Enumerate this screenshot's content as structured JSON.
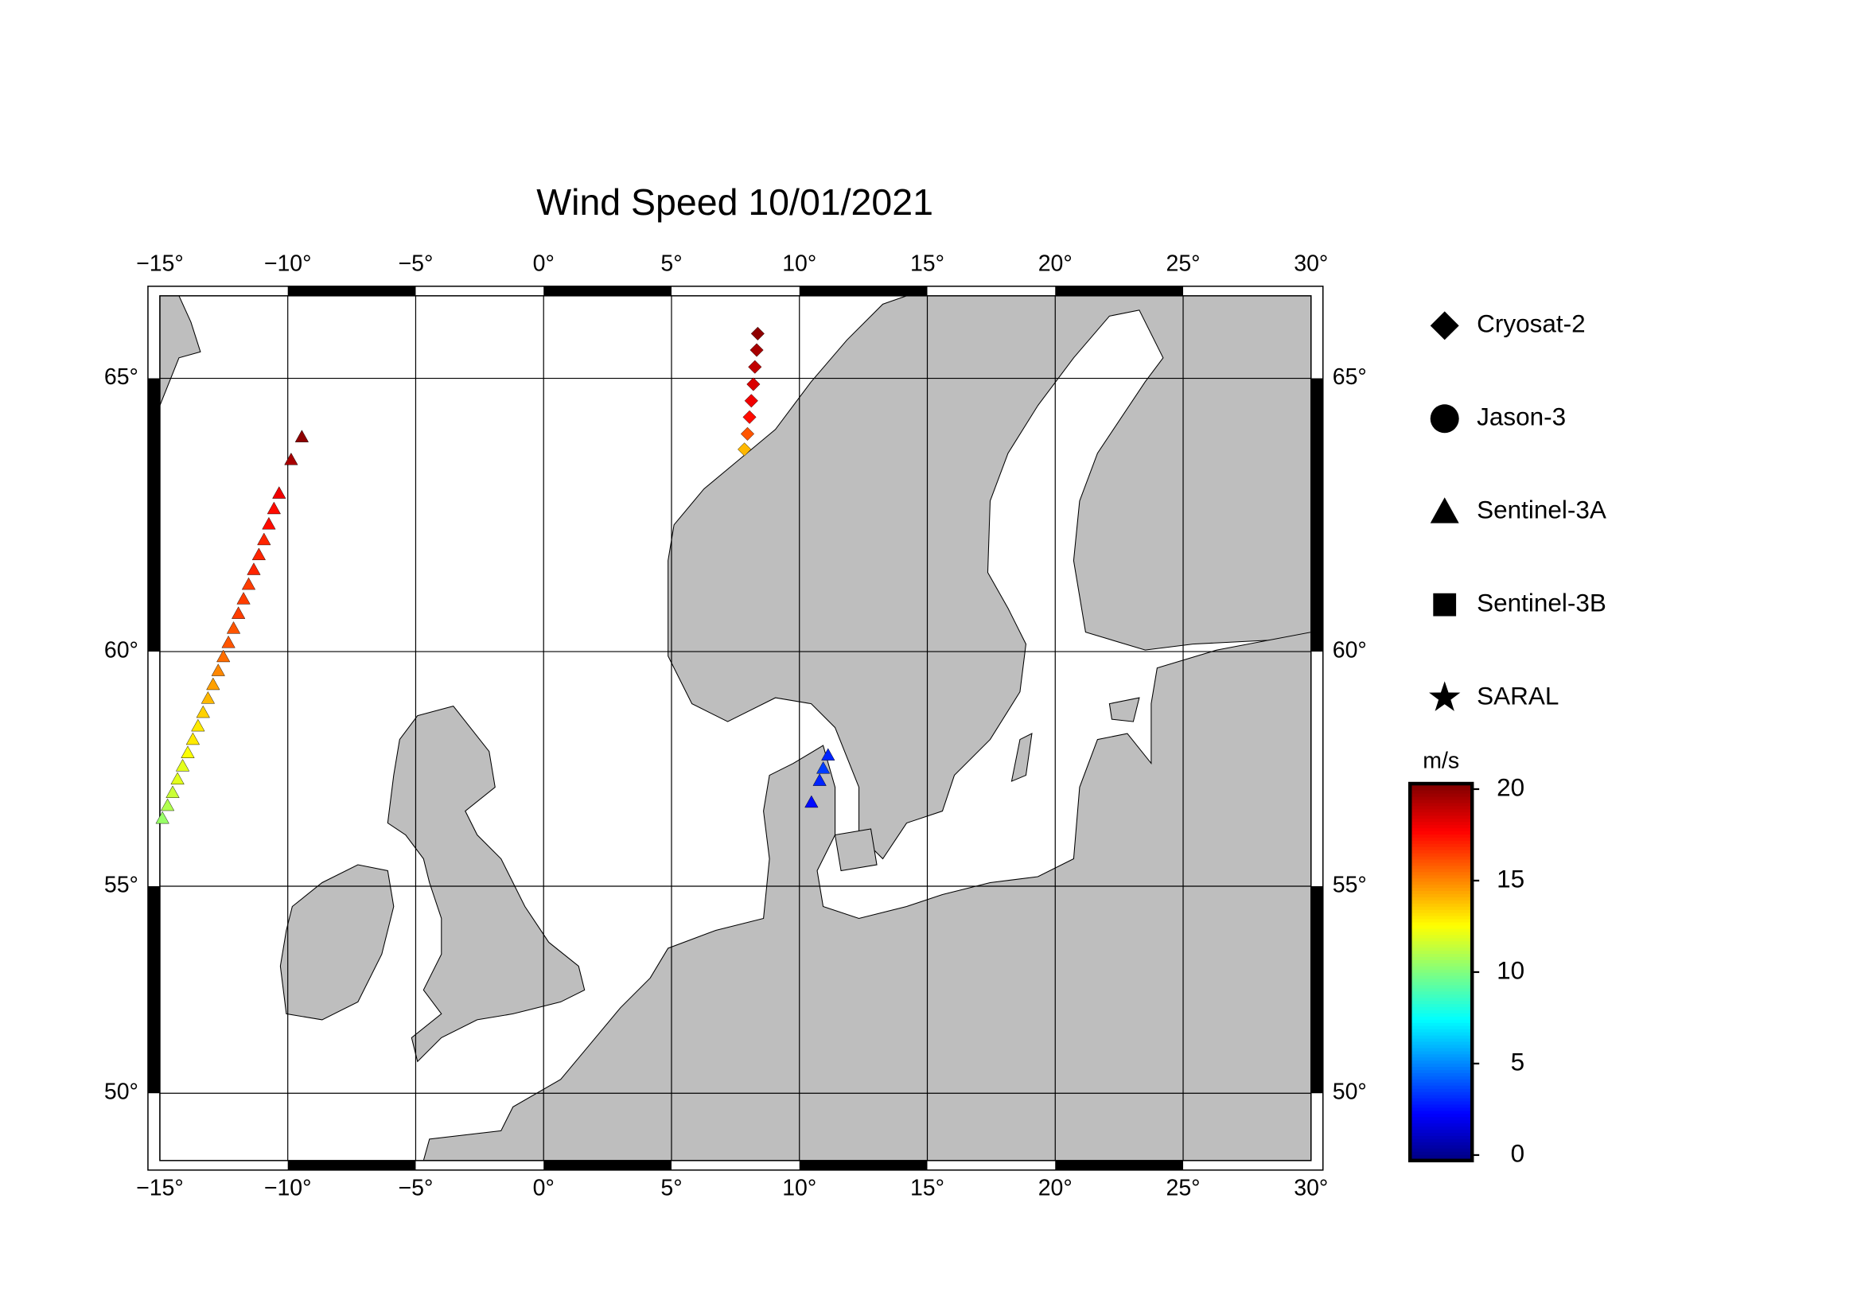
{
  "chart_data": {
    "type": "map",
    "title": "Wind Speed 10/01/2021",
    "xlim": [
      -15,
      30
    ],
    "ylim": [
      48.25,
      66.35
    ],
    "projection": "mercator",
    "xticks": [
      {
        "value": -15,
        "label": "−15°"
      },
      {
        "value": -10,
        "label": "−10°"
      },
      {
        "value": -5,
        "label": "−5°"
      },
      {
        "value": 0,
        "label": "0°"
      },
      {
        "value": 5,
        "label": "5°"
      },
      {
        "value": 10,
        "label": "10°"
      },
      {
        "value": 15,
        "label": "15°"
      },
      {
        "value": 20,
        "label": "20°"
      },
      {
        "value": 25,
        "label": "25°"
      },
      {
        "value": 30,
        "label": "30°"
      }
    ],
    "yticks": [
      {
        "value": 50,
        "label": "50°"
      },
      {
        "value": 55,
        "label": "55°"
      },
      {
        "value": 60,
        "label": "60°"
      },
      {
        "value": 65,
        "label": "65°"
      }
    ],
    "grid": true,
    "colorbar": {
      "label": "m/s",
      "colormap": "jet",
      "lim": [
        -0.3,
        20.3
      ],
      "ticks": [
        0,
        5,
        10,
        15,
        20
      ]
    },
    "series": [
      {
        "name": "Cryosat-2",
        "marker": "diamond",
        "x": [
          8.37,
          8.33,
          8.26,
          8.2,
          8.12,
          8.05,
          7.97,
          7.85
        ],
        "y": [
          65.74,
          65.47,
          65.19,
          64.9,
          64.62,
          64.34,
          64.05,
          63.78
        ],
        "values": [
          20,
          19.5,
          19,
          18.5,
          18,
          17.5,
          16,
          14
        ]
      },
      {
        "name": "Jason-3",
        "marker": "circle",
        "x": [],
        "y": [],
        "values": []
      },
      {
        "name": "Sentinel-3A",
        "marker": "triangle",
        "x": [
          -9.45,
          -9.87,
          -10.34,
          -10.54,
          -10.74,
          -10.93,
          -11.13,
          -11.33,
          -11.53,
          -11.73,
          -11.93,
          -12.12,
          -12.32,
          -12.52,
          -12.72,
          -12.92,
          -13.12,
          -13.31,
          -13.51,
          -13.71,
          -13.91,
          -14.11,
          -14.31,
          -14.5,
          -14.7,
          -14.9,
          11.12,
          10.93,
          10.79,
          10.47
        ],
        "y": [
          64.0,
          63.6,
          63.0,
          62.72,
          62.44,
          62.15,
          61.87,
          61.59,
          61.31,
          61.03,
          60.75,
          60.46,
          60.18,
          59.9,
          59.62,
          59.34,
          59.06,
          58.77,
          58.49,
          58.21,
          57.93,
          57.65,
          57.37,
          57.08,
          56.8,
          56.52,
          57.88,
          57.6,
          57.34,
          56.87
        ],
        "values": [
          20,
          19.5,
          18,
          17.5,
          17.5,
          17,
          17,
          17,
          16.5,
          16.5,
          16.5,
          16,
          16,
          15.5,
          15,
          14.5,
          14,
          13.5,
          13,
          13,
          12.5,
          12,
          12,
          11.5,
          11,
          10.5,
          3,
          3.5,
          3,
          2.5
        ]
      },
      {
        "name": "Sentinel-3B",
        "marker": "square",
        "x": [],
        "y": [],
        "values": []
      },
      {
        "name": "SARAL",
        "marker": "star",
        "x": [],
        "y": [],
        "values": []
      }
    ]
  }
}
